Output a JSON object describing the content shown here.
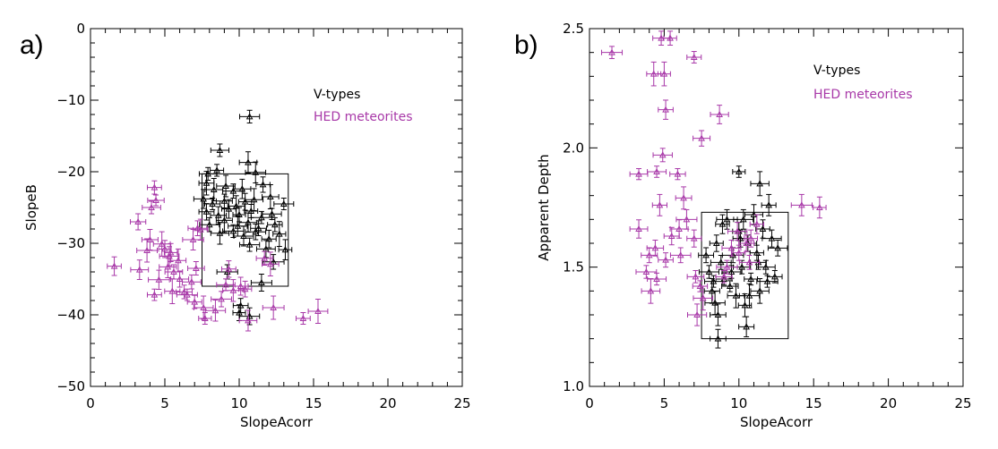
{
  "panels": {
    "a": "a)",
    "b": "b)"
  },
  "colors": {
    "vtypes": "#000000",
    "hed": "#a838a8",
    "axis": "#000000"
  },
  "chart_data": [
    {
      "type": "scatter",
      "id": "a",
      "xlabel": "SlopeAcorr",
      "ylabel": "SlopeB",
      "xlim": [
        0,
        25
      ],
      "ylim": [
        -50,
        0
      ],
      "xticks": [
        0,
        5,
        10,
        15,
        20,
        25
      ],
      "yticks": [
        -50,
        -40,
        -30,
        -20,
        -10,
        0
      ],
      "legend": [
        "V-types",
        "HED meteorites"
      ],
      "legend_position": "top-right",
      "box": {
        "x": [
          7.5,
          13.3
        ],
        "y": [
          -36,
          -20.3
        ]
      },
      "series": [
        {
          "name": "V-types",
          "color": "#000000",
          "points": [
            [
              10.7,
              -12.3
            ],
            [
              8.7,
              -17.0
            ],
            [
              10.6,
              -18.7
            ],
            [
              7.9,
              -20.3
            ],
            [
              8.5,
              -19.8
            ],
            [
              11.1,
              -20.1
            ],
            [
              7.8,
              -21.6
            ],
            [
              8.3,
              -22.5
            ],
            [
              9.1,
              -22.0
            ],
            [
              9.6,
              -22.7
            ],
            [
              10.2,
              -22.4
            ],
            [
              11.6,
              -21.8
            ],
            [
              12.1,
              -23.5
            ],
            [
              7.6,
              -23.8
            ],
            [
              8.2,
              -24.5
            ],
            [
              9.0,
              -24.1
            ],
            [
              9.8,
              -24.8
            ],
            [
              10.4,
              -24.2
            ],
            [
              11.0,
              -23.9
            ],
            [
              13.0,
              -24.5
            ],
            [
              7.8,
              -25.6
            ],
            [
              8.6,
              -26.1
            ],
            [
              9.3,
              -25.2
            ],
            [
              10.0,
              -26.0
            ],
            [
              10.8,
              -25.5
            ],
            [
              11.5,
              -26.4
            ],
            [
              12.2,
              -25.9
            ],
            [
              8.0,
              -27.4
            ],
            [
              9.0,
              -26.8
            ],
            [
              9.9,
              -27.6
            ],
            [
              10.6,
              -27.1
            ],
            [
              11.3,
              -27.9
            ],
            [
              12.4,
              -27.4
            ],
            [
              8.7,
              -28.6
            ],
            [
              9.6,
              -28.3
            ],
            [
              10.3,
              -29.0
            ],
            [
              11.1,
              -28.4
            ],
            [
              12.0,
              -29.4
            ],
            [
              12.7,
              -28.7
            ],
            [
              10.7,
              -30.2
            ],
            [
              11.8,
              -30.8
            ],
            [
              13.1,
              -30.9
            ],
            [
              12.3,
              -32.6
            ],
            [
              9.2,
              -34.0
            ],
            [
              11.5,
              -35.5
            ],
            [
              10.1,
              -38.7
            ],
            [
              10.0,
              -39.7
            ],
            [
              10.7,
              -40.2
            ]
          ]
        },
        {
          "name": "HED meteorites",
          "color": "#a838a8",
          "points": [
            [
              1.6,
              -33.2
            ],
            [
              3.2,
              -27.0
            ],
            [
              3.3,
              -33.7
            ],
            [
              3.8,
              -31.0
            ],
            [
              4.0,
              -29.5
            ],
            [
              4.1,
              -25.0
            ],
            [
              4.3,
              -22.2
            ],
            [
              4.4,
              -24.0
            ],
            [
              4.3,
              -37.2
            ],
            [
              4.6,
              -35.1
            ],
            [
              4.8,
              -30.1
            ],
            [
              5.0,
              -30.8
            ],
            [
              5.2,
              -33.3
            ],
            [
              5.3,
              -31.8
            ],
            [
              5.5,
              -36.7
            ],
            [
              5.6,
              -34.0
            ],
            [
              5.9,
              -32.4
            ],
            [
              6.0,
              -35.0
            ],
            [
              6.3,
              -36.8
            ],
            [
              6.5,
              -37.2
            ],
            [
              6.8,
              -35.4
            ],
            [
              6.9,
              -29.5
            ],
            [
              7.1,
              -33.5
            ],
            [
              7.2,
              -27.9
            ],
            [
              7.4,
              -28.1
            ],
            [
              7.0,
              -38.2
            ],
            [
              7.6,
              -39.0
            ],
            [
              7.7,
              -40.5
            ],
            [
              8.4,
              -39.4
            ],
            [
              8.8,
              -37.8
            ],
            [
              9.1,
              -35.8
            ],
            [
              9.3,
              -33.6
            ],
            [
              9.6,
              -36.6
            ],
            [
              10.1,
              -36.0
            ],
            [
              10.4,
              -36.4
            ],
            [
              10.6,
              -40.8
            ],
            [
              11.7,
              -32.1
            ],
            [
              12.1,
              -32.9
            ],
            [
              12.3,
              -39.0
            ],
            [
              14.3,
              -40.5
            ],
            [
              15.3,
              -39.5
            ],
            [
              5.4,
              -31.3
            ]
          ]
        }
      ]
    },
    {
      "type": "scatter",
      "id": "b",
      "xlabel": "SlopeAcorr",
      "ylabel": "Apparent Depth",
      "xlim": [
        0,
        25
      ],
      "ylim": [
        1.0,
        2.5
      ],
      "xticks": [
        0,
        5,
        10,
        15,
        20,
        25
      ],
      "yticks": [
        1.0,
        1.5,
        2.0,
        2.5
      ],
      "legend": [
        "V-types",
        "HED meteorites"
      ],
      "legend_position": "top-right",
      "box": {
        "x": [
          7.5,
          13.3
        ],
        "y": [
          1.2,
          1.73
        ]
      },
      "series": [
        {
          "name": "V-types",
          "color": "#000000",
          "points": [
            [
              10.0,
              1.9
            ],
            [
              11.4,
              1.85
            ],
            [
              7.8,
              1.55
            ],
            [
              8.0,
              1.48
            ],
            [
              8.2,
              1.4
            ],
            [
              8.4,
              1.35
            ],
            [
              8.5,
              1.6
            ],
            [
              8.6,
              1.3
            ],
            [
              8.8,
              1.52
            ],
            [
              9.0,
              1.45
            ],
            [
              9.2,
              1.7
            ],
            [
              9.4,
              1.42
            ],
            [
              9.6,
              1.55
            ],
            [
              9.8,
              1.38
            ],
            [
              10.0,
              1.65
            ],
            [
              10.2,
              1.5
            ],
            [
              10.4,
              1.34
            ],
            [
              10.6,
              1.6
            ],
            [
              10.8,
              1.45
            ],
            [
              11.0,
              1.72
            ],
            [
              11.2,
              1.56
            ],
            [
              11.4,
              1.4
            ],
            [
              11.6,
              1.66
            ],
            [
              11.8,
              1.5
            ],
            [
              12.0,
              1.76
            ],
            [
              12.2,
              1.62
            ],
            [
              12.4,
              1.46
            ],
            [
              12.6,
              1.58
            ],
            [
              8.3,
              1.44
            ],
            [
              8.9,
              1.68
            ],
            [
              9.5,
              1.48
            ],
            [
              10.1,
              1.62
            ],
            [
              10.7,
              1.38
            ],
            [
              11.3,
              1.52
            ],
            [
              11.9,
              1.44
            ],
            [
              10.5,
              1.25
            ],
            [
              8.6,
              1.2
            ],
            [
              10.3,
              1.7
            ]
          ]
        },
        {
          "name": "HED meteorites",
          "color": "#a838a8",
          "points": [
            [
              1.5,
              2.4
            ],
            [
              7.0,
              2.38
            ],
            [
              4.3,
              2.31
            ],
            [
              4.8,
              2.46
            ],
            [
              5.4,
              2.46
            ],
            [
              5.0,
              2.31
            ],
            [
              5.1,
              2.16
            ],
            [
              8.7,
              2.14
            ],
            [
              7.5,
              2.04
            ],
            [
              4.9,
              1.97
            ],
            [
              4.5,
              1.9
            ],
            [
              3.3,
              1.89
            ],
            [
              5.9,
              1.89
            ],
            [
              6.3,
              1.79
            ],
            [
              4.7,
              1.76
            ],
            [
              6.5,
              1.7
            ],
            [
              6.0,
              1.66
            ],
            [
              3.3,
              1.66
            ],
            [
              14.2,
              1.76
            ],
            [
              15.4,
              1.75
            ],
            [
              4.4,
              1.58
            ],
            [
              5.5,
              1.63
            ],
            [
              7.0,
              1.62
            ],
            [
              4.0,
              1.55
            ],
            [
              5.1,
              1.53
            ],
            [
              6.1,
              1.55
            ],
            [
              3.8,
              1.48
            ],
            [
              4.5,
              1.45
            ],
            [
              4.1,
              1.4
            ],
            [
              7.1,
              1.46
            ],
            [
              7.4,
              1.42
            ],
            [
              7.6,
              1.37
            ],
            [
              7.2,
              1.3
            ],
            [
              9.2,
              1.5
            ],
            [
              9.5,
              1.58
            ],
            [
              9.9,
              1.65
            ],
            [
              10.5,
              1.6
            ],
            [
              10.0,
              1.56
            ],
            [
              10.7,
              1.52
            ],
            [
              11.2,
              1.68
            ],
            [
              10.8,
              1.62
            ],
            [
              9.0,
              1.46
            ]
          ]
        }
      ]
    }
  ]
}
